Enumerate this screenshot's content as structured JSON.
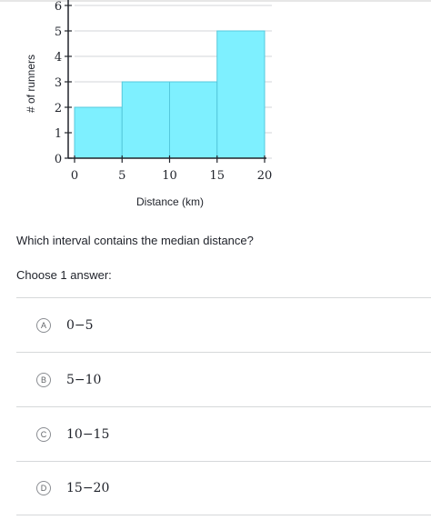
{
  "chart_data": {
    "type": "bar",
    "bins": [
      [
        0,
        5
      ],
      [
        5,
        10
      ],
      [
        10,
        15
      ],
      [
        15,
        20
      ]
    ],
    "values": [
      2,
      3,
      3,
      5
    ],
    "x_ticks": [
      "0",
      "5",
      "10",
      "15",
      "20"
    ],
    "y_ticks": [
      "0",
      "1",
      "2",
      "3",
      "4",
      "5",
      "6"
    ],
    "xlabel": "Distance (km)",
    "ylabel": "# of runners",
    "xlim": [
      0,
      20
    ],
    "ylim": [
      0,
      6
    ],
    "grid": true,
    "bar_color": "#7ef0ff",
    "bar_edge_color": "#55c8dc"
  },
  "question": {
    "text": "Which interval contains the median distance?",
    "instruction": "Choose 1 answer:"
  },
  "choices": [
    {
      "letter": "A",
      "text": "0−5"
    },
    {
      "letter": "B",
      "text": "5−10"
    },
    {
      "letter": "C",
      "text": "10−15"
    },
    {
      "letter": "D",
      "text": "15−20"
    }
  ]
}
